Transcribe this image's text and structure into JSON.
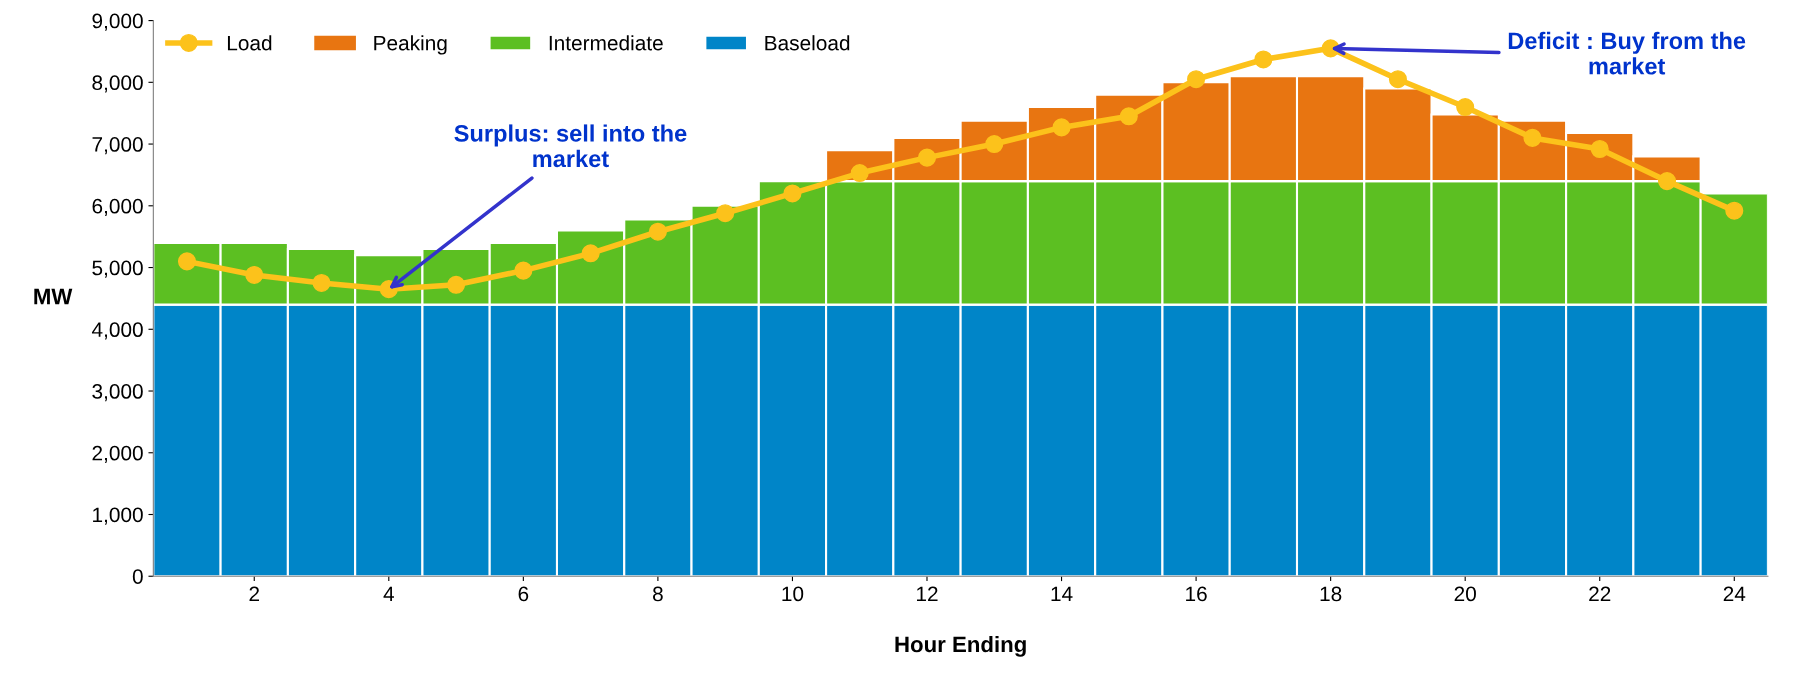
{
  "chart_data": {
    "type": "bar",
    "stacked": true,
    "xlabel": "Hour Ending",
    "ylabel": "MW",
    "x": [
      1,
      2,
      3,
      4,
      5,
      6,
      7,
      8,
      9,
      10,
      11,
      12,
      13,
      14,
      15,
      16,
      17,
      18,
      19,
      20,
      21,
      22,
      23,
      24
    ],
    "xlim": [
      0.5,
      24.5
    ],
    "xticks": [
      2,
      4,
      6,
      8,
      10,
      12,
      14,
      16,
      18,
      20,
      22,
      24
    ],
    "ylim": [
      0,
      9000
    ],
    "yticks": [
      {
        "value": 0,
        "label": "0"
      },
      {
        "value": 1000,
        "label": "1,000"
      },
      {
        "value": 2000,
        "label": "2,000"
      },
      {
        "value": 3000,
        "label": "3,000"
      },
      {
        "value": 4000,
        "label": "4,000"
      },
      {
        "value": 5000,
        "label": "5,000"
      },
      {
        "value": 6000,
        "label": "6,000"
      },
      {
        "value": 7000,
        "label": "7,000"
      },
      {
        "value": 8000,
        "label": "8,000"
      },
      {
        "value": 9000,
        "label": "9,000"
      }
    ],
    "grid": false,
    "legend": "top left",
    "series": [
      {
        "name": "Baseload",
        "color": "#0085c8",
        "values": [
          4400,
          4400,
          4400,
          4400,
          4400,
          4400,
          4400,
          4400,
          4400,
          4400,
          4400,
          4400,
          4400,
          4400,
          4400,
          4400,
          4400,
          4400,
          4400,
          4400,
          4400,
          4400,
          4400,
          4400
        ]
      },
      {
        "name": "Intermediate",
        "color": "#5cbf22",
        "values": [
          1000,
          1000,
          900,
          800,
          900,
          1000,
          1200,
          1380,
          1600,
          2000,
          2000,
          2000,
          2000,
          2000,
          2000,
          2000,
          2000,
          2000,
          2000,
          2000,
          2000,
          2000,
          2000,
          1800
        ]
      },
      {
        "name": "Peaking",
        "color": "#e87511",
        "values": [
          0,
          0,
          0,
          0,
          0,
          0,
          0,
          0,
          0,
          0,
          500,
          700,
          980,
          1200,
          1400,
          1600,
          1700,
          1700,
          1500,
          1080,
          980,
          780,
          400,
          0
        ]
      },
      {
        "name": "Load",
        "type": "line",
        "color": "#fcc21b",
        "marker": "circle",
        "values": [
          5100,
          4880,
          4750,
          4650,
          4720,
          4950,
          5230,
          5580,
          5880,
          6200,
          6530,
          6780,
          7000,
          7270,
          7450,
          8050,
          8370,
          8550,
          8050,
          7600,
          7100,
          6920,
          6400,
          5920
        ]
      }
    ],
    "annotations": [
      {
        "text": "Surplus: sell into the\nmarket",
        "x": 4,
        "y": 4650
      },
      {
        "text": "Deficit : Buy from the\nmarket",
        "x": 18,
        "y": 8550
      }
    ]
  }
}
